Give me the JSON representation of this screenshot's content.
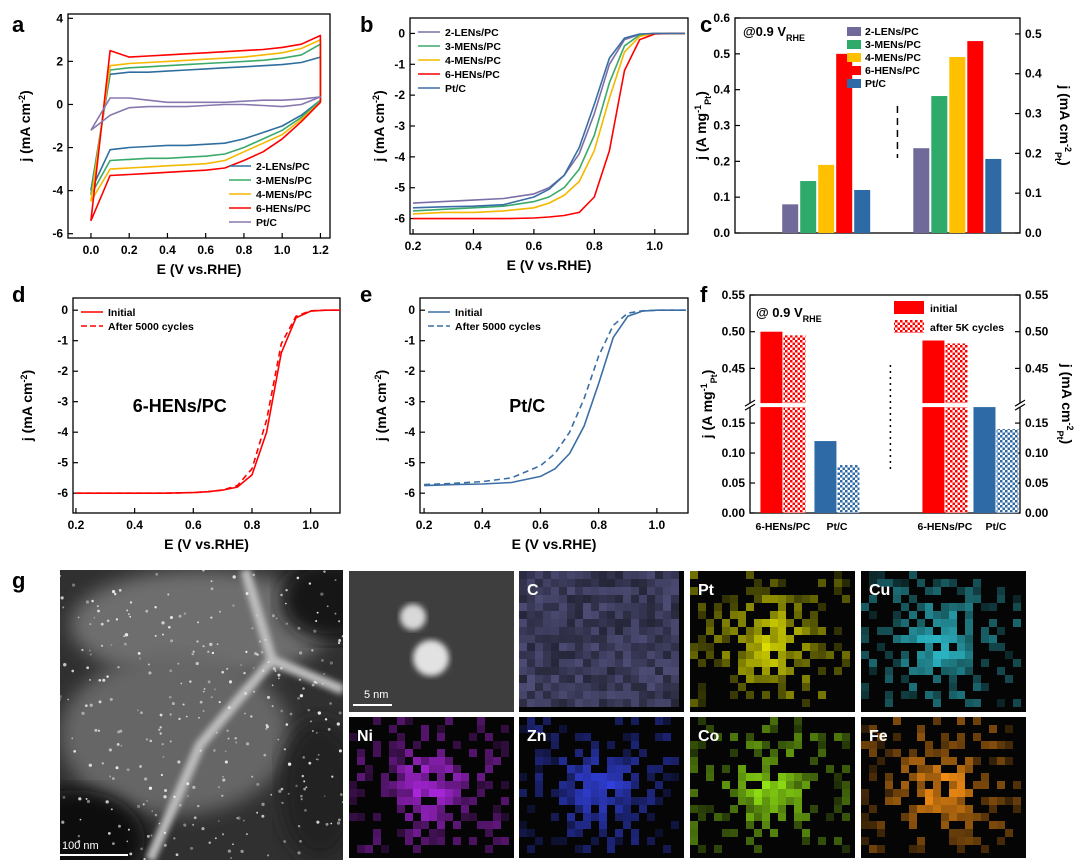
{
  "chart_data": [
    {
      "panel": "a",
      "type": "line",
      "xlabel": "E (V vs.RHE)",
      "ylabel": [
        {
          "t": "j (mA cm"
        },
        {
          "sup": "-2"
        },
        {
          "t": ")"
        }
      ],
      "x": [
        0,
        0.1,
        0.2,
        0.3,
        0.4,
        0.5,
        0.6,
        0.7,
        0.8,
        0.9,
        1.0,
        1.1,
        1.2,
        1.2,
        1.1,
        1.0,
        0.9,
        0.8,
        0.7,
        0.6,
        0.5,
        0.4,
        0.3,
        0.2,
        0.1,
        0
      ],
      "xlim": [
        -0.12,
        1.25
      ],
      "xticks": [
        {
          "value": 0,
          "label": "0.0"
        },
        0.2,
        0.4,
        0.6,
        0.8,
        {
          "value": 1,
          "label": "1.0"
        },
        1.2
      ],
      "ylim": [
        -6.2,
        4.2
      ],
      "yticks": [
        -6,
        -4,
        -2,
        0,
        2,
        4
      ],
      "legend": "lower right",
      "series": [
        {
          "name": "2-LENs/PC",
          "color": "#2f6f9f",
          "values": [
            -4.0,
            1.4,
            1.5,
            1.5,
            1.55,
            1.6,
            1.65,
            1.7,
            1.75,
            1.8,
            1.85,
            1.95,
            2.2,
            0.2,
            -0.5,
            -1.0,
            -1.3,
            -1.6,
            -1.8,
            -1.85,
            -1.9,
            -1.9,
            -1.95,
            -2.0,
            -2.1,
            -4.0
          ]
        },
        {
          "name": "3-MENs/PC",
          "color": "#3aaa6a",
          "values": [
            -4.2,
            1.6,
            1.7,
            1.75,
            1.8,
            1.85,
            1.9,
            1.95,
            2.0,
            2.05,
            2.15,
            2.3,
            2.8,
            0.2,
            -0.6,
            -1.2,
            -1.6,
            -2.0,
            -2.3,
            -2.4,
            -2.45,
            -2.5,
            -2.5,
            -2.55,
            -2.6,
            -4.2
          ]
        },
        {
          "name": "4-MENs/PC",
          "color": "#f5b800",
          "values": [
            -4.5,
            1.8,
            1.9,
            1.95,
            2.0,
            2.05,
            2.1,
            2.15,
            2.2,
            2.3,
            2.4,
            2.6,
            3.0,
            0.1,
            -0.7,
            -1.4,
            -1.8,
            -2.2,
            -2.6,
            -2.75,
            -2.8,
            -2.85,
            -2.9,
            -2.95,
            -3.0,
            -4.5
          ]
        },
        {
          "name": "6-HENs/PC",
          "color": "#ff0000",
          "values": [
            -5.4,
            2.5,
            2.2,
            2.25,
            2.3,
            2.35,
            2.4,
            2.45,
            2.5,
            2.55,
            2.65,
            2.8,
            3.2,
            0.1,
            -0.8,
            -1.6,
            -2.2,
            -2.6,
            -2.95,
            -3.05,
            -3.1,
            -3.15,
            -3.2,
            -3.25,
            -3.3,
            -5.4
          ]
        },
        {
          "name": "Pt/C",
          "color": "#8878b0",
          "values": [
            -1.2,
            0.3,
            0.3,
            0.2,
            0.1,
            0.1,
            0.1,
            0.1,
            0.15,
            0.2,
            0.2,
            0.25,
            0.35,
            0.35,
            0.0,
            -0.1,
            -0.05,
            0.0,
            0.0,
            -0.05,
            -0.1,
            -0.1,
            -0.1,
            -0.15,
            -0.5,
            -1.2
          ]
        }
      ]
    },
    {
      "panel": "b",
      "type": "line",
      "xlabel": "E (V vs.RHE)",
      "ylabel": [
        {
          "t": "j (mA cm"
        },
        {
          "sup": "-2"
        },
        {
          "t": ")"
        }
      ],
      "x": [
        0.2,
        0.3,
        0.4,
        0.5,
        0.6,
        0.65,
        0.7,
        0.75,
        0.8,
        0.85,
        0.9,
        0.95,
        1.0,
        1.05,
        1.1
      ],
      "xlim": [
        0.19,
        1.11
      ],
      "xticks": [
        0.2,
        0.4,
        0.6,
        0.8,
        {
          "value": 1,
          "label": "1.0"
        }
      ],
      "ylim": [
        -6.5,
        0.5
      ],
      "yticks": [
        0,
        -1,
        -2,
        -3,
        -4,
        -5,
        -6
      ],
      "legend": "upper left",
      "series": [
        {
          "name": "2-LENs/PC",
          "color": "#7b6fa8",
          "values": [
            -5.5,
            -5.45,
            -5.4,
            -5.35,
            -5.2,
            -5.0,
            -4.6,
            -3.9,
            -2.6,
            -1.0,
            -0.2,
            -0.03,
            0,
            0,
            0
          ]
        },
        {
          "name": "3-MENs/PC",
          "color": "#3aaa6a",
          "values": [
            -5.75,
            -5.7,
            -5.65,
            -5.6,
            -5.45,
            -5.3,
            -5.0,
            -4.4,
            -3.3,
            -1.6,
            -0.4,
            -0.05,
            0,
            0,
            0
          ]
        },
        {
          "name": "4-MENs/PC",
          "color": "#f5b800",
          "values": [
            -5.85,
            -5.8,
            -5.8,
            -5.75,
            -5.65,
            -5.5,
            -5.25,
            -4.8,
            -3.8,
            -2.1,
            -0.6,
            -0.1,
            0,
            0,
            0
          ]
        },
        {
          "name": "6-HENs/PC",
          "color": "#ff0000",
          "values": [
            -6.0,
            -6.0,
            -6.0,
            -6.0,
            -5.98,
            -5.95,
            -5.9,
            -5.8,
            -5.3,
            -3.8,
            -1.2,
            -0.2,
            -0.02,
            0,
            0
          ]
        },
        {
          "name": "Pt/C",
          "color": "#3a6ea5",
          "values": [
            -5.65,
            -5.62,
            -5.6,
            -5.55,
            -5.3,
            -5.05,
            -4.6,
            -3.7,
            -2.3,
            -0.8,
            -0.15,
            -0.02,
            0,
            0,
            0
          ]
        }
      ]
    },
    {
      "panel": "c",
      "type": "bar",
      "annotation": [
        {
          "t": "@0.9 V"
        },
        {
          "sub": "RHE"
        }
      ],
      "ylabel": [
        {
          "t": "j (A mg"
        },
        {
          "sup": "-1"
        },
        {
          "sub": "Pt"
        },
        {
          "t": ")"
        }
      ],
      "y2label": [
        {
          "t": "j (mA cm"
        },
        {
          "sup": "-2"
        },
        {
          "sub": "Pt"
        },
        {
          "t": ")"
        }
      ],
      "value_axes": [
        "y",
        "y2"
      ],
      "ylim": [
        0,
        0.6
      ],
      "yticks": [
        {
          "value": 0,
          "label": "0.0"
        },
        0.1,
        0.2,
        0.3,
        0.4,
        0.5,
        0.6
      ],
      "y2lim": [
        0,
        0.54
      ],
      "y2ticks": [
        {
          "value": 0,
          "label": "0.0"
        },
        0.1,
        0.2,
        0.3,
        0.4,
        0.5
      ],
      "legend": "upper center",
      "series": [
        {
          "name": "2-LENs/PC",
          "color": "#6f6a9a",
          "values": [
            0.08,
            0.213
          ]
        },
        {
          "name": "3-MENs/PC",
          "color": "#2eaa6a",
          "values": [
            0.145,
            0.344
          ]
        },
        {
          "name": "4-MENs/PC",
          "color": "#ffc000",
          "values": [
            0.19,
            0.442
          ]
        },
        {
          "name": "6-HENs/PC",
          "color": "#ff0000",
          "values": [
            0.5,
            0.482
          ]
        },
        {
          "name": "Pt/C",
          "color": "#2e6aa6",
          "values": [
            0.12,
            0.186
          ]
        }
      ]
    },
    {
      "panel": "d",
      "type": "line",
      "xlabel": "E (V vs.RHE)",
      "ylabel": [
        {
          "t": "j (mA cm"
        },
        {
          "sup": "-2"
        },
        {
          "t": ")"
        }
      ],
      "annotation": "6-HENs/PC",
      "x": [
        0.2,
        0.3,
        0.4,
        0.5,
        0.6,
        0.65,
        0.7,
        0.75,
        0.8,
        0.85,
        0.9,
        0.95,
        1.0,
        1.05,
        1.1
      ],
      "xlim": [
        0.19,
        1.1
      ],
      "xticks": [
        0.2,
        0.4,
        0.6,
        0.8,
        {
          "value": 1,
          "label": "1.0"
        }
      ],
      "ylim": [
        -6.65,
        0.4
      ],
      "yticks": [
        0,
        -1,
        -2,
        -3,
        -4,
        -5,
        -6
      ],
      "legend": "upper left",
      "series": [
        {
          "name": "Initial",
          "color": "#ff0000",
          "style": "solid",
          "values": [
            -6.0,
            -6.0,
            -6.0,
            -6.0,
            -5.98,
            -5.95,
            -5.9,
            -5.8,
            -5.4,
            -4.0,
            -1.4,
            -0.25,
            -0.03,
            0,
            0
          ]
        },
        {
          "name": "After 5000 cycles",
          "color": "#ff0000",
          "style": "dashed",
          "values": [
            -6.0,
            -6.0,
            -6.0,
            -6.0,
            -5.98,
            -5.95,
            -5.9,
            -5.75,
            -5.2,
            -3.6,
            -1.1,
            -0.2,
            -0.02,
            0,
            0
          ]
        }
      ]
    },
    {
      "panel": "e",
      "type": "line",
      "xlabel": "E (V vs.RHE)",
      "ylabel": [
        {
          "t": "j (mA cm"
        },
        {
          "sup": "-2"
        },
        {
          "t": ")"
        }
      ],
      "annotation": "Pt/C",
      "x": [
        0.2,
        0.3,
        0.4,
        0.5,
        0.6,
        0.65,
        0.7,
        0.75,
        0.8,
        0.85,
        0.9,
        0.95,
        1.0,
        1.05,
        1.1
      ],
      "xlim": [
        0.186,
        1.107
      ],
      "xticks": [
        0.2,
        0.4,
        0.6,
        0.8,
        {
          "value": 1,
          "label": "1.0"
        }
      ],
      "ylim": [
        -6.65,
        0.4
      ],
      "yticks": [
        0,
        -1,
        -2,
        -3,
        -4,
        -5,
        -6
      ],
      "legend": "upper left",
      "series": [
        {
          "name": "Initial",
          "color": "#3a6ea5",
          "style": "solid",
          "values": [
            -5.75,
            -5.72,
            -5.7,
            -5.65,
            -5.45,
            -5.2,
            -4.7,
            -3.8,
            -2.4,
            -0.9,
            -0.2,
            -0.03,
            0,
            0,
            0
          ]
        },
        {
          "name": "After 5000 cycles",
          "color": "#3a6ea5",
          "style": "dashed",
          "values": [
            -5.72,
            -5.68,
            -5.62,
            -5.5,
            -5.1,
            -4.7,
            -4.0,
            -2.9,
            -1.5,
            -0.5,
            -0.1,
            -0.02,
            0,
            0,
            0
          ]
        }
      ]
    },
    {
      "panel": "f",
      "type": "broken_bar",
      "annotation": [
        {
          "t": "@ 0.9 V"
        },
        {
          "sub": "RHE"
        }
      ],
      "ylabel": [
        {
          "t": "j (A mg"
        },
        {
          "sup": "-1"
        },
        {
          "sub": "Pt"
        },
        {
          "t": ")"
        }
      ],
      "y2label": [
        {
          "t": "j (mA cm"
        },
        {
          "sup": "-2"
        },
        {
          "sub": "Pt"
        },
        {
          "t": ")"
        }
      ],
      "categories": [
        "6-HENs/PC",
        "Pt/C",
        "6-HENs/PC",
        "Pt/C"
      ],
      "value_axes": [
        "y",
        "y",
        "y2",
        "y2"
      ],
      "category_colors": [
        "#ff0000",
        "#2e6aa6",
        "#ff0000",
        "#2e6aa6"
      ],
      "ylim": [
        0,
        0.55
      ],
      "ybreak": [
        0.18,
        0.4
      ],
      "yticks": [
        {
          "value": 0,
          "label": "0.00"
        },
        0.05,
        {
          "value": 0.1,
          "label": "0.10"
        },
        0.15,
        0.45,
        {
          "value": 0.5,
          "label": "0.50"
        },
        0.55
      ],
      "y2lim": [
        0,
        0.55
      ],
      "y2ticks": [
        {
          "value": 0,
          "label": "0.00"
        },
        0.05,
        {
          "value": 0.1,
          "label": "0.10"
        },
        0.15,
        0.45,
        {
          "value": 0.5,
          "label": "0.50"
        },
        0.55
      ],
      "legend": "upper right",
      "series": [
        {
          "name": "initial",
          "pattern": "solid",
          "values": [
            0.5,
            0.12,
            0.488,
            0.18
          ]
        },
        {
          "name": "after 5K cycles",
          "pattern": "checker",
          "values": [
            0.495,
            0.08,
            0.484,
            0.14
          ]
        }
      ]
    }
  ],
  "micrographs": {
    "panel": "g",
    "overview_scale": "100 nm",
    "zoom_scale": "5 nm",
    "maps": [
      {
        "label": "C",
        "color": "#7474b4"
      },
      {
        "label": "Pt",
        "color": "#e0e000"
      },
      {
        "label": "Cu",
        "color": "#30c8d8"
      },
      {
        "label": "Ni",
        "color": "#b428e8"
      },
      {
        "label": "Zn",
        "color": "#3444e8"
      },
      {
        "label": "Co",
        "color": "#94e814"
      },
      {
        "label": "Fe",
        "color": "#ff9414"
      }
    ]
  }
}
